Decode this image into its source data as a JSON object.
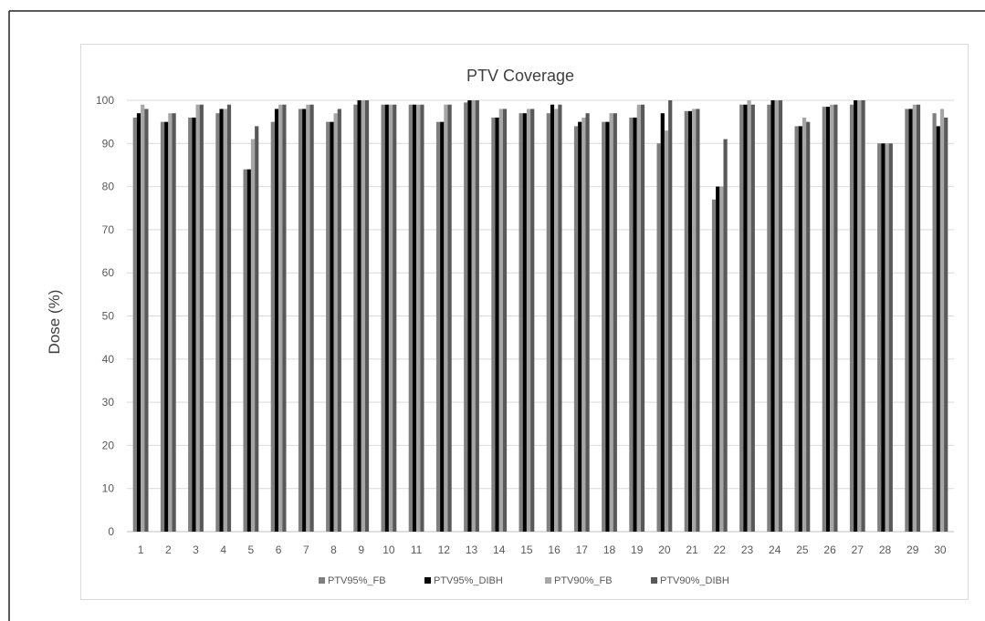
{
  "chart_data": {
    "type": "bar",
    "title": "PTV Coverage",
    "xlabel": "",
    "ylabel": "Dose (%)",
    "ylim": [
      0,
      100
    ],
    "yticks": [
      0,
      10,
      20,
      30,
      40,
      50,
      60,
      70,
      80,
      90,
      100
    ],
    "grid": true,
    "legend_position": "bottom",
    "categories": [
      "1",
      "2",
      "3",
      "4",
      "5",
      "6",
      "7",
      "8",
      "9",
      "10",
      "11",
      "12",
      "13",
      "14",
      "15",
      "16",
      "17",
      "18",
      "19",
      "20",
      "21",
      "22",
      "23",
      "24",
      "25",
      "26",
      "27",
      "28",
      "29",
      "30"
    ],
    "series": [
      {
        "name": "PTV95%_FB",
        "color": "#7f7f7f",
        "values": [
          96,
          95,
          96,
          97,
          84,
          95,
          98,
          95,
          99,
          99,
          99,
          95,
          99.5,
          96,
          97,
          97,
          94,
          95,
          96,
          90,
          97.5,
          77,
          99,
          99,
          94,
          98.5,
          99,
          90,
          98,
          97
        ]
      },
      {
        "name": "PTV95%_DIBH",
        "color": "#000000",
        "values": [
          97,
          95,
          96,
          98,
          84,
          98,
          98,
          95,
          100,
          99,
          99,
          95,
          100,
          96,
          97,
          99,
          95,
          95,
          96,
          97,
          97.5,
          80,
          99,
          100,
          94,
          98.5,
          100,
          90,
          98,
          94
        ]
      },
      {
        "name": "PTV90%_FB",
        "color": "#a6a6a6",
        "values": [
          99,
          97,
          99,
          98,
          91,
          99,
          99,
          97,
          100,
          99,
          99,
          99,
          100,
          98,
          98,
          98,
          96,
          97,
          99,
          93,
          98,
          80,
          100,
          100,
          96,
          99,
          100,
          90,
          99,
          98
        ]
      },
      {
        "name": "PTV90%_DIBH",
        "color": "#595959",
        "values": [
          98,
          97,
          99,
          99,
          94,
          99,
          99,
          98,
          100,
          99,
          99,
          99,
          100,
          98,
          98,
          99,
          97,
          97,
          99,
          100,
          98,
          91,
          99,
          100,
          95,
          99,
          100,
          90,
          99,
          96
        ]
      }
    ]
  }
}
